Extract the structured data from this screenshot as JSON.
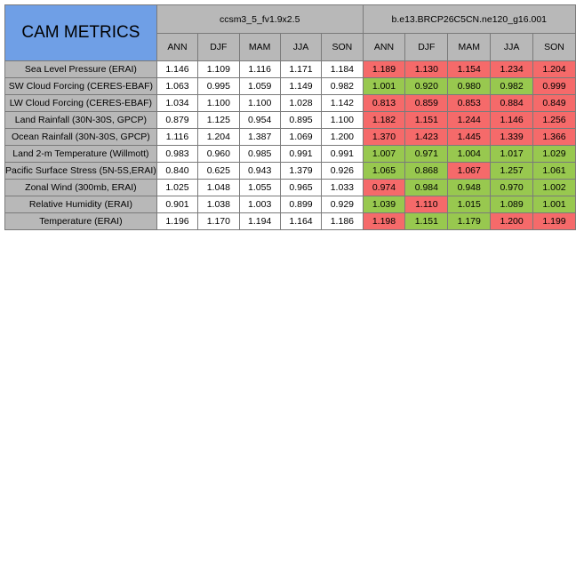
{
  "title": "CAM METRICS",
  "colors": {
    "title_bg": "#6f9fe6",
    "header_bg": "#b8b8b8",
    "better": "#98c84f",
    "worse": "#f56a6a",
    "neutral": "#ffffff"
  },
  "chart_data": {
    "type": "table",
    "title": "CAM METRICS",
    "case_groups": [
      "ccsm3_5_fv1.9x2.5",
      "b.e13.BRCP26C5CN.ne120_g16.001"
    ],
    "seasons": [
      "ANN",
      "DJF",
      "MAM",
      "JJA",
      "SON"
    ],
    "rows": [
      {
        "label": "Sea Level Pressure (ERAI)",
        "case1": [
          "1.146",
          "1.109",
          "1.116",
          "1.171",
          "1.184"
        ],
        "case2": [
          "1.189",
          "1.130",
          "1.154",
          "1.234",
          "1.204"
        ],
        "case2_status": [
          "worse",
          "worse",
          "worse",
          "worse",
          "worse"
        ]
      },
      {
        "label": "SW Cloud Forcing (CERES-EBAF)",
        "case1": [
          "1.063",
          "0.995",
          "1.059",
          "1.149",
          "0.982"
        ],
        "case2": [
          "1.001",
          "0.920",
          "0.980",
          "0.982",
          "0.999"
        ],
        "case2_status": [
          "better",
          "better",
          "better",
          "better",
          "worse"
        ]
      },
      {
        "label": "LW Cloud Forcing (CERES-EBAF)",
        "case1": [
          "1.034",
          "1.100",
          "1.100",
          "1.028",
          "1.142"
        ],
        "case2": [
          "0.813",
          "0.859",
          "0.853",
          "0.884",
          "0.849"
        ],
        "case2_status": [
          "worse",
          "worse",
          "worse",
          "worse",
          "worse"
        ]
      },
      {
        "label": "Land Rainfall (30N-30S, GPCP)",
        "case1": [
          "0.879",
          "1.125",
          "0.954",
          "0.895",
          "1.100"
        ],
        "case2": [
          "1.182",
          "1.151",
          "1.244",
          "1.146",
          "1.256"
        ],
        "case2_status": [
          "worse",
          "worse",
          "worse",
          "worse",
          "worse"
        ]
      },
      {
        "label": "Ocean Rainfall (30N-30S, GPCP)",
        "case1": [
          "1.116",
          "1.204",
          "1.387",
          "1.069",
          "1.200"
        ],
        "case2": [
          "1.370",
          "1.423",
          "1.445",
          "1.339",
          "1.366"
        ],
        "case2_status": [
          "worse",
          "worse",
          "worse",
          "worse",
          "worse"
        ]
      },
      {
        "label": "Land 2-m Temperature (Willmott)",
        "case1": [
          "0.983",
          "0.960",
          "0.985",
          "0.991",
          "0.991"
        ],
        "case2": [
          "1.007",
          "0.971",
          "1.004",
          "1.017",
          "1.029"
        ],
        "case2_status": [
          "better",
          "better",
          "better",
          "better",
          "better"
        ]
      },
      {
        "label": "Pacific Surface Stress (5N-5S,ERAI)",
        "case1": [
          "0.840",
          "0.625",
          "0.943",
          "1.379",
          "0.926"
        ],
        "case2": [
          "1.065",
          "0.868",
          "1.067",
          "1.257",
          "1.061"
        ],
        "case2_status": [
          "better",
          "better",
          "worse",
          "better",
          "better"
        ]
      },
      {
        "label": "Zonal Wind (300mb, ERAI)",
        "case1": [
          "1.025",
          "1.048",
          "1.055",
          "0.965",
          "1.033"
        ],
        "case2": [
          "0.974",
          "0.984",
          "0.948",
          "0.970",
          "1.002"
        ],
        "case2_status": [
          "worse",
          "better",
          "better",
          "better",
          "better"
        ]
      },
      {
        "label": "Relative Humidity (ERAI)",
        "case1": [
          "0.901",
          "1.038",
          "1.003",
          "0.899",
          "0.929"
        ],
        "case2": [
          "1.039",
          "1.110",
          "1.015",
          "1.089",
          "1.001"
        ],
        "case2_status": [
          "better",
          "worse",
          "better",
          "better",
          "better"
        ]
      },
      {
        "label": "Temperature (ERAI)",
        "case1": [
          "1.196",
          "1.170",
          "1.194",
          "1.164",
          "1.186"
        ],
        "case2": [
          "1.198",
          "1.151",
          "1.179",
          "1.200",
          "1.199"
        ],
        "case2_status": [
          "worse",
          "better",
          "better",
          "worse",
          "worse"
        ]
      }
    ]
  }
}
